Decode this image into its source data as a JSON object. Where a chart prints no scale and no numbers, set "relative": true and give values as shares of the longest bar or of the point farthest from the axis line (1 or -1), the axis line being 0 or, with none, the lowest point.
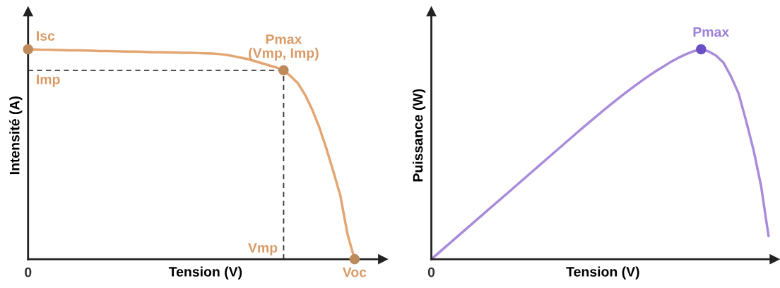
{
  "chart_data": [
    {
      "type": "line",
      "relative": true,
      "xlabel": "Tension (V)",
      "ylabel": "Intensité (A)",
      "grid": false,
      "legend": false,
      "categories": [
        null,
        null,
        null,
        null,
        null,
        null,
        null,
        null,
        null,
        null,
        null,
        null,
        null,
        null,
        null,
        null,
        null,
        null,
        null,
        null,
        null,
        null,
        null,
        null,
        null,
        null,
        null,
        null,
        null,
        null,
        null,
        null,
        null,
        null,
        null,
        null,
        null,
        null,
        null,
        null,
        null,
        null,
        null,
        null,
        null,
        null,
        null
      ],
      "series": [
        {
          "color": "#e3a673",
          "values": [
            1.0,
            0.999,
            0.998,
            0.998,
            0.997,
            0.996,
            0.995,
            0.995,
            0.994,
            0.993,
            0.992,
            0.992,
            0.991,
            0.99,
            0.989,
            0.989,
            0.988,
            0.987,
            0.986,
            0.986,
            0.985,
            0.984,
            0.983,
            0.983,
            0.982,
            0.981,
            0.98,
            0.977,
            0.973,
            0.967,
            0.96,
            0.953,
            0.943,
            0.933,
            0.923,
            0.913,
            0.9,
            0.872,
            0.839,
            0.785,
            0.715,
            0.631,
            0.53,
            0.419,
            0.302,
            0.12,
            0
          ]
        }
      ],
      "ref_lines": [
        {
          "axis": "y",
          "value": 0.9,
          "color": "#333333",
          "line_style": "dashed"
        }
      ],
      "annotations": [
        "0",
        {
          "text": "Isc",
          "y": 1.0
        },
        "Imp",
        {
          "text": "Pmax\n(Vmp, Imp)",
          "y": 0.9
        },
        "Vmp",
        {
          "text": "Voc",
          "y": 0
        }
      ]
    },
    {
      "type": "line",
      "relative": true,
      "xlabel": "Tension (V)",
      "ylabel": "Puissance (W)",
      "grid": false,
      "legend": false,
      "categories": [
        null,
        null,
        null,
        null,
        null,
        null,
        null,
        null,
        null,
        null,
        null,
        null,
        null,
        null,
        null,
        null,
        null,
        null,
        null,
        null,
        null,
        null,
        null,
        null,
        null,
        null,
        null,
        null,
        null,
        null,
        null,
        null,
        null,
        null,
        null,
        null,
        null,
        null,
        null,
        null,
        null,
        null,
        null,
        null,
        null,
        null
      ],
      "series": [
        {
          "color": "#a98bd9",
          "values": [
            0,
            0.031,
            0.062,
            0.093,
            0.124,
            0.155,
            0.186,
            0.217,
            0.248,
            0.279,
            0.31,
            0.341,
            0.372,
            0.403,
            0.434,
            0.465,
            0.496,
            0.527,
            0.558,
            0.589,
            0.62,
            0.65,
            0.68,
            0.71,
            0.739,
            0.767,
            0.795,
            0.822,
            0.848,
            0.873,
            0.897,
            0.919,
            0.941,
            0.96,
            0.977,
            0.991,
            1.0,
            0.99,
            0.97,
            0.936,
            0.87,
            0.79,
            0.66,
            0.52,
            0.35,
            0.11
          ]
        }
      ],
      "annotations": [
        "0",
        {
          "text": "Pmax",
          "y": 1.0
        }
      ]
    }
  ]
}
